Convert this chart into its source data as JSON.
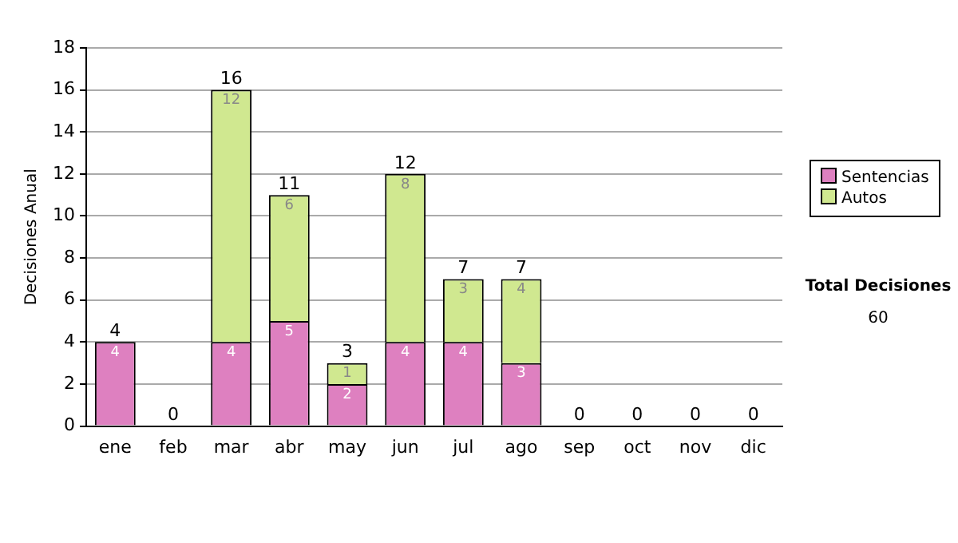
{
  "chart_data": {
    "type": "bar",
    "stacked": true,
    "ylabel": "Decisiones Anual",
    "categories": [
      "ene",
      "feb",
      "mar",
      "abr",
      "may",
      "jun",
      "jul",
      "ago",
      "sep",
      "oct",
      "nov",
      "dic"
    ],
    "series": [
      {
        "name": "Sentencias",
        "color": "#de80c0",
        "values": [
          4,
          0,
          4,
          5,
          2,
          4,
          4,
          3,
          0,
          0,
          0,
          0
        ],
        "value_labels": [
          "4",
          null,
          "4",
          "5",
          "2",
          "4",
          "4",
          "3",
          null,
          null,
          null,
          null
        ]
      },
      {
        "name": "Autos",
        "color": "#d0e890",
        "values": [
          0,
          0,
          12,
          6,
          1,
          8,
          3,
          4,
          0,
          0,
          0,
          0
        ],
        "value_labels": [
          null,
          null,
          "12",
          "6",
          "1",
          "8",
          "3",
          "4",
          null,
          null,
          null,
          null
        ]
      }
    ],
    "totals": [
      "4",
      "0",
      "16",
      "11",
      "3",
      "12",
      "7",
      "7",
      "0",
      "0",
      "0",
      "0"
    ],
    "ylim": [
      0,
      18
    ],
    "yticks": [
      0,
      2,
      4,
      6,
      8,
      10,
      12,
      14,
      16,
      18
    ],
    "grid": "y",
    "legend": "right",
    "annotations": [
      "Total Decisiones",
      "60"
    ]
  }
}
